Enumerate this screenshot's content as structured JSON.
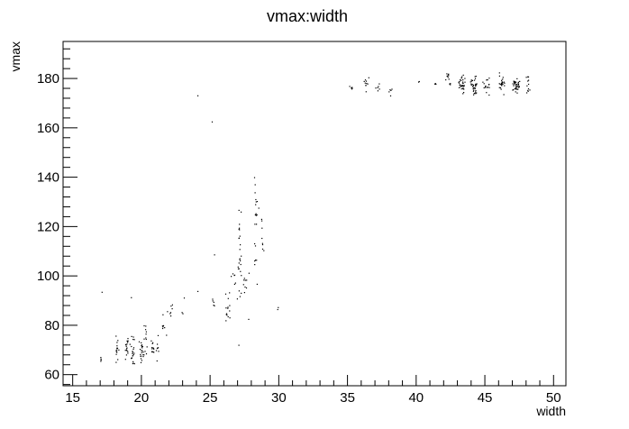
{
  "chart_data": {
    "type": "scatter",
    "title": "vmax:width",
    "xlabel": "width",
    "ylabel": "vmax",
    "xlim": [
      14.3,
      50.9
    ],
    "ylim": [
      55.5,
      195.0
    ],
    "x_ticks": [
      15,
      20,
      25,
      30,
      35,
      40,
      45,
      50
    ],
    "y_ticks": [
      60,
      80,
      100,
      120,
      140,
      160,
      180
    ],
    "grid": false,
    "legend": "none",
    "marker_color": "#000000",
    "clusters": [
      {
        "x": 17.0,
        "y": 66,
        "spread_x": 0.08,
        "spread_y": 1.2,
        "count": 4
      },
      {
        "x": 17.1,
        "y": 93.5,
        "spread_x": 0.05,
        "spread_y": 0.3,
        "count": 1
      },
      {
        "x": 18.2,
        "y": 70,
        "spread_x": 0.15,
        "spread_y": 4.5,
        "count": 16
      },
      {
        "x": 18.9,
        "y": 71,
        "spread_x": 0.15,
        "spread_y": 4.5,
        "count": 18
      },
      {
        "x": 19.3,
        "y": 70,
        "spread_x": 0.15,
        "spread_y": 4.5,
        "count": 22
      },
      {
        "x": 19.3,
        "y": 91.5,
        "spread_x": 0.05,
        "spread_y": 0.3,
        "count": 1
      },
      {
        "x": 20.0,
        "y": 70,
        "spread_x": 0.15,
        "spread_y": 4.5,
        "count": 22
      },
      {
        "x": 20.3,
        "y": 74,
        "spread_x": 0.12,
        "spread_y": 5.5,
        "count": 10
      },
      {
        "x": 20.8,
        "y": 69,
        "spread_x": 0.15,
        "spread_y": 3.5,
        "count": 12
      },
      {
        "x": 21.1,
        "y": 72,
        "spread_x": 0.1,
        "spread_y": 4.5,
        "count": 8
      },
      {
        "x": 21.6,
        "y": 82,
        "spread_x": 0.2,
        "spread_y": 5,
        "count": 8
      },
      {
        "x": 22.2,
        "y": 86,
        "spread_x": 0.15,
        "spread_y": 4,
        "count": 6
      },
      {
        "x": 23.0,
        "y": 89,
        "spread_x": 0.15,
        "spread_y": 2.5,
        "count": 3
      },
      {
        "x": 24.1,
        "y": 173,
        "spread_x": 0.05,
        "spread_y": 0.3,
        "count": 1
      },
      {
        "x": 24.1,
        "y": 94,
        "spread_x": 0.05,
        "spread_y": 0.3,
        "count": 1
      },
      {
        "x": 25.1,
        "y": 163,
        "spread_x": 0.05,
        "spread_y": 0.3,
        "count": 1
      },
      {
        "x": 25.2,
        "y": 90,
        "spread_x": 0.1,
        "spread_y": 6,
        "count": 5
      },
      {
        "x": 25.3,
        "y": 109,
        "spread_x": 0.05,
        "spread_y": 0.3,
        "count": 1
      },
      {
        "x": 26.2,
        "y": 88,
        "spread_x": 0.15,
        "spread_y": 5,
        "count": 14
      },
      {
        "x": 26.7,
        "y": 98,
        "spread_x": 0.15,
        "spread_y": 6,
        "count": 6
      },
      {
        "x": 27.1,
        "y": 110,
        "spread_x": 0.15,
        "spread_y": 18,
        "count": 26
      },
      {
        "x": 27.1,
        "y": 72,
        "spread_x": 0.05,
        "spread_y": 0.3,
        "count": 1
      },
      {
        "x": 27.6,
        "y": 96,
        "spread_x": 0.2,
        "spread_y": 9,
        "count": 10
      },
      {
        "x": 28.3,
        "y": 122,
        "spread_x": 0.15,
        "spread_y": 18,
        "count": 22
      },
      {
        "x": 28.8,
        "y": 118,
        "spread_x": 0.12,
        "spread_y": 12,
        "count": 8
      },
      {
        "x": 29.9,
        "y": 87,
        "spread_x": 0.05,
        "spread_y": 0.8,
        "count": 2
      },
      {
        "x": 35.2,
        "y": 176,
        "spread_x": 0.1,
        "spread_y": 1.5,
        "count": 5
      },
      {
        "x": 36.3,
        "y": 178,
        "spread_x": 0.15,
        "spread_y": 3,
        "count": 10
      },
      {
        "x": 37.2,
        "y": 177,
        "spread_x": 0.12,
        "spread_y": 2.5,
        "count": 6
      },
      {
        "x": 38.1,
        "y": 175,
        "spread_x": 0.12,
        "spread_y": 1.5,
        "count": 5
      },
      {
        "x": 40.2,
        "y": 179,
        "spread_x": 0.05,
        "spread_y": 0.5,
        "count": 2
      },
      {
        "x": 41.4,
        "y": 178,
        "spread_x": 0.1,
        "spread_y": 1,
        "count": 3
      },
      {
        "x": 42.3,
        "y": 180,
        "spread_x": 0.15,
        "spread_y": 2.5,
        "count": 12
      },
      {
        "x": 43.3,
        "y": 178,
        "spread_x": 0.2,
        "spread_y": 3.2,
        "count": 36
      },
      {
        "x": 44.2,
        "y": 177,
        "spread_x": 0.2,
        "spread_y": 3.2,
        "count": 34
      },
      {
        "x": 45.1,
        "y": 177,
        "spread_x": 0.2,
        "spread_y": 2.8,
        "count": 16
      },
      {
        "x": 46.2,
        "y": 178,
        "spread_x": 0.2,
        "spread_y": 3,
        "count": 24
      },
      {
        "x": 47.2,
        "y": 177,
        "spread_x": 0.25,
        "spread_y": 2.5,
        "count": 42
      },
      {
        "x": 48.1,
        "y": 177,
        "spread_x": 0.15,
        "spread_y": 3,
        "count": 12
      }
    ]
  }
}
